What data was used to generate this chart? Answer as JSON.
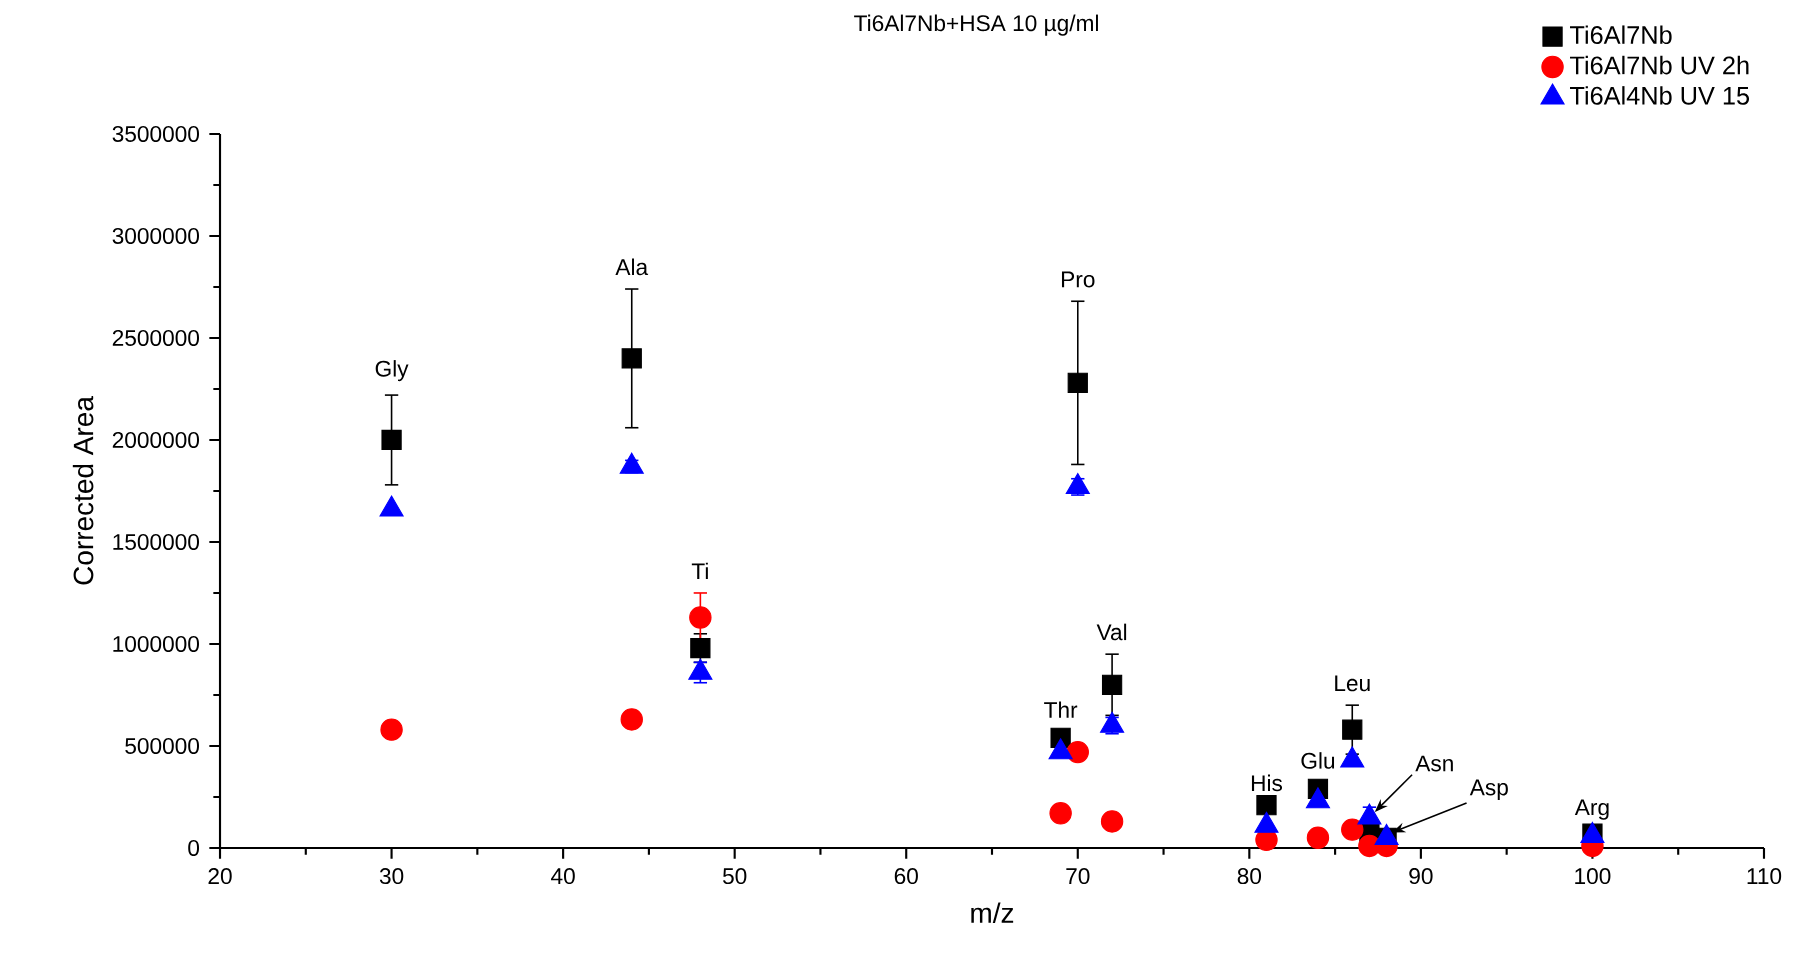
{
  "chart_data": {
    "type": "scatter",
    "title": "Ti6Al7Nb+HSA 10 µg/ml",
    "xlabel": "m/z",
    "ylabel": "Corrected Area",
    "xlim": [
      20,
      110
    ],
    "xticks": [
      20,
      30,
      40,
      50,
      60,
      70,
      80,
      90,
      100,
      110
    ],
    "ylim": [
      0,
      3500000
    ],
    "yticks": [
      0,
      500000,
      1000000,
      1500000,
      2000000,
      2500000,
      3000000,
      3500000
    ],
    "legend": "top right",
    "grid": false,
    "x": [
      30,
      44,
      48,
      69,
      70,
      72,
      81,
      84,
      86,
      87,
      88,
      100
    ],
    "series": [
      {
        "name": "Ti6Al7Nb",
        "color": "#000000",
        "marker": "square",
        "values": [
          2000000,
          2400000,
          980000,
          540000,
          2280000,
          800000,
          210000,
          290000,
          580000,
          80000,
          50000,
          70000
        ],
        "errors": [
          220000,
          340000,
          70000,
          30000,
          400000,
          150000,
          null,
          30000,
          120000,
          null,
          null,
          null
        ]
      },
      {
        "name": "Ti6Al7Nb UV 2h",
        "color": "#ff0000",
        "marker": "circle",
        "values": [
          580000,
          630000,
          1130000,
          170000,
          470000,
          130000,
          40000,
          50000,
          90000,
          10000,
          10000,
          10000
        ],
        "errors": [
          30000,
          30000,
          120000,
          null,
          null,
          null,
          null,
          null,
          null,
          null,
          null,
          null
        ]
      },
      {
        "name": "Ti6Al4Nb UV 15",
        "color": "#0000ff",
        "marker": "triangle",
        "values": [
          1660000,
          1870000,
          860000,
          470000,
          1770000,
          600000,
          110000,
          230000,
          430000,
          150000,
          50000,
          60000
        ],
        "errors": [
          null,
          30000,
          50000,
          null,
          40000,
          40000,
          null,
          null,
          null,
          50000,
          null,
          null
        ]
      }
    ],
    "annotations": [
      {
        "text": "Gly",
        "x": 30,
        "y": 2220000
      },
      {
        "text": "Ala",
        "x": 44,
        "y": 2740000
      },
      {
        "text": "Ti",
        "x": 48,
        "y": 1250000
      },
      {
        "text": "Pro",
        "x": 70,
        "y": 2680000
      },
      {
        "text": "Thr",
        "x": 69,
        "y": 570000
      },
      {
        "text": "Val",
        "x": 72,
        "y": 950000
      },
      {
        "text": "His",
        "x": 81,
        "y": 210000
      },
      {
        "text": "Glu",
        "x": 84,
        "y": 320000
      },
      {
        "text": "Leu",
        "x": 86,
        "y": 700000
      },
      {
        "text": "Asn",
        "x": 87,
        "y": 150000
      },
      {
        "text": "Asp",
        "x": 88,
        "y": 50000
      },
      {
        "text": "Arg",
        "x": 100,
        "y": 70000
      }
    ]
  }
}
